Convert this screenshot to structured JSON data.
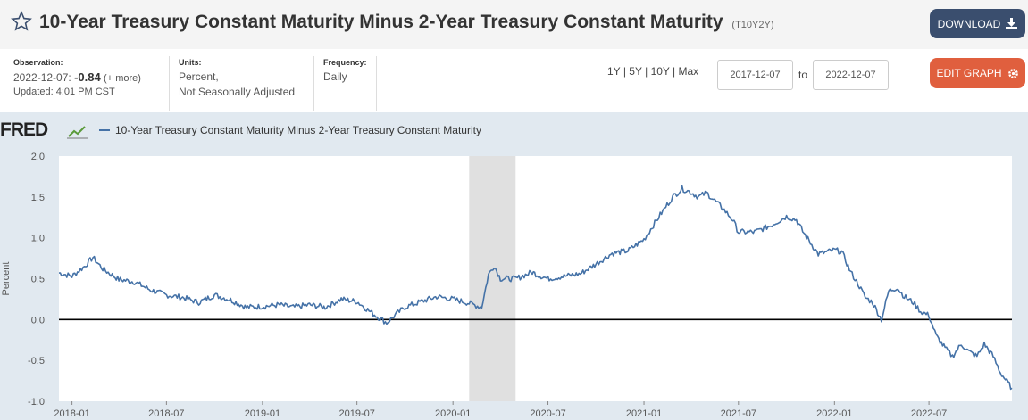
{
  "header": {
    "title": "10-Year Treasury Constant Maturity Minus 2-Year Treasury Constant Maturity",
    "series_id": "(T10Y2Y)",
    "download_label": "DOWNLOAD",
    "edit_label": "EDIT GRAPH"
  },
  "meta": {
    "observation_label": "Observation:",
    "observation_date": "2022-12-07:",
    "observation_value": "-0.84",
    "more_link": "(+ more)",
    "updated": "Updated: 4:01 PM CST",
    "units_label": "Units:",
    "units_line1": "Percent,",
    "units_line2": "Not Seasonally Adjusted",
    "frequency_label": "Frequency:",
    "frequency_value": "Daily"
  },
  "range_controls": {
    "r1y": "1Y",
    "r5y": "5Y",
    "r10y": "10Y",
    "rmax": "Max",
    "divider": "|",
    "start_date": "2017-12-07",
    "to_label": "to",
    "end_date": "2022-12-07"
  },
  "colors": {
    "accent": "#4572a7",
    "download_bg": "#3a4e6e",
    "edit_bg": "#e05f3e",
    "recession": "#e0e0e0"
  },
  "chart_data": {
    "type": "line",
    "logo": "FRED",
    "legend": "10-Year Treasury Constant Maturity Minus 2-Year Treasury Constant Maturity",
    "ylabel": "Percent",
    "ylim": [
      -1.0,
      2.0
    ],
    "yticks": [
      "2.0",
      "1.5",
      "1.0",
      "0.5",
      "0.0",
      "-0.5",
      "-1.0"
    ],
    "ytick_values": [
      2.0,
      1.5,
      1.0,
      0.5,
      0.0,
      -0.5,
      -1.0
    ],
    "xlim": [
      "2017-12-07",
      "2022-12-07"
    ],
    "xticks": [
      "2018-01",
      "2018-07",
      "2019-01",
      "2019-07",
      "2020-01",
      "2020-07",
      "2021-01",
      "2021-07",
      "2022-01",
      "2022-07"
    ],
    "recession": [
      "2020-02-01",
      "2020-04-30"
    ],
    "series": [
      {
        "name": "10-Year Treasury Constant Maturity Minus 2-Year Treasury Constant Maturity",
        "x": [
          "2017-12-07",
          "2018-01-01",
          "2018-01-25",
          "2018-02-10",
          "2018-03-01",
          "2018-04-01",
          "2018-05-01",
          "2018-06-01",
          "2018-07-01",
          "2018-08-01",
          "2018-09-01",
          "2018-10-01",
          "2018-11-01",
          "2018-12-01",
          "2019-01-01",
          "2019-02-01",
          "2019-03-01",
          "2019-04-01",
          "2019-05-01",
          "2019-06-01",
          "2019-07-01",
          "2019-08-01",
          "2019-08-27",
          "2019-09-15",
          "2019-10-01",
          "2019-11-01",
          "2019-12-01",
          "2020-01-01",
          "2020-02-01",
          "2020-02-25",
          "2020-03-09",
          "2020-03-20",
          "2020-04-01",
          "2020-05-01",
          "2020-06-01",
          "2020-06-10",
          "2020-07-01",
          "2020-08-01",
          "2020-09-01",
          "2020-10-01",
          "2020-11-01",
          "2020-12-01",
          "2021-01-01",
          "2021-02-01",
          "2021-02-25",
          "2021-03-15",
          "2021-03-31",
          "2021-04-15",
          "2021-05-01",
          "2021-06-01",
          "2021-06-20",
          "2021-07-01",
          "2021-08-01",
          "2021-09-01",
          "2021-10-01",
          "2021-10-20",
          "2021-11-01",
          "2021-12-01",
          "2022-01-01",
          "2022-01-15",
          "2022-02-01",
          "2022-02-15",
          "2022-03-01",
          "2022-03-15",
          "2022-04-01",
          "2022-04-15",
          "2022-05-01",
          "2022-05-15",
          "2022-06-01",
          "2022-06-15",
          "2022-07-01",
          "2022-07-15",
          "2022-08-01",
          "2022-08-15",
          "2022-09-01",
          "2022-09-15",
          "2022-10-01",
          "2022-10-15",
          "2022-11-01",
          "2022-11-15",
          "2022-12-07"
        ],
        "values": [
          0.57,
          0.53,
          0.65,
          0.76,
          0.62,
          0.49,
          0.46,
          0.36,
          0.3,
          0.27,
          0.21,
          0.3,
          0.24,
          0.15,
          0.16,
          0.18,
          0.15,
          0.18,
          0.15,
          0.25,
          0.22,
          0.07,
          -0.04,
          0.07,
          0.15,
          0.22,
          0.28,
          0.25,
          0.2,
          0.15,
          0.55,
          0.66,
          0.5,
          0.5,
          0.58,
          0.55,
          0.5,
          0.53,
          0.56,
          0.68,
          0.81,
          0.84,
          0.98,
          1.28,
          1.5,
          1.6,
          1.56,
          1.5,
          1.55,
          1.36,
          1.22,
          1.07,
          1.07,
          1.15,
          1.26,
          1.22,
          1.08,
          0.8,
          0.85,
          0.83,
          0.58,
          0.44,
          0.27,
          0.21,
          0.0,
          0.35,
          0.39,
          0.28,
          0.21,
          0.1,
          0.05,
          -0.2,
          -0.35,
          -0.45,
          -0.3,
          -0.39,
          -0.45,
          -0.3,
          -0.45,
          -0.65,
          -0.84
        ]
      }
    ]
  }
}
